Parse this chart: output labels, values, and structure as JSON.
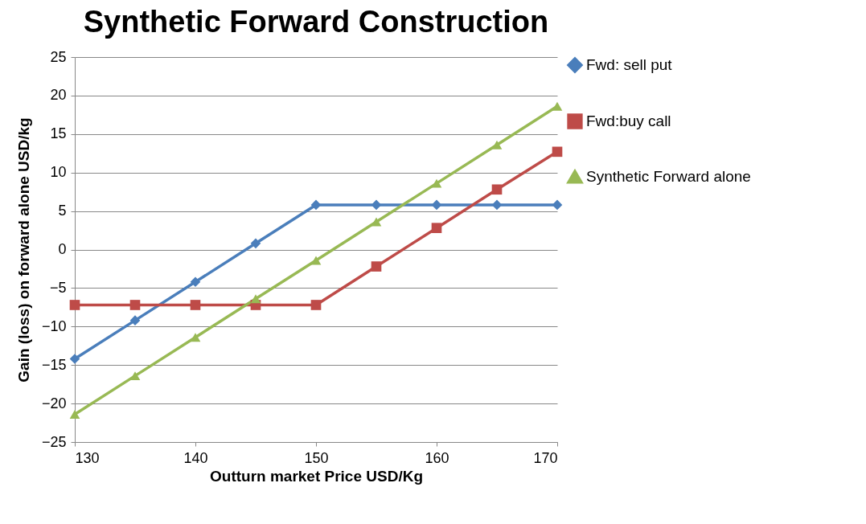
{
  "chart_data": {
    "type": "line",
    "title": "Synthetic Forward Construction",
    "xlabel": "Outturn market Price USD/Kg",
    "ylabel": "Gain (loss) on forward alone USD/kg",
    "x": [
      130,
      135,
      140,
      145,
      150,
      155,
      160,
      165,
      170
    ],
    "series": [
      {
        "name": "Fwd: sell put",
        "color": "#4a7ebb",
        "marker": "diamond",
        "values": [
          -14.2,
          -9.2,
          -4.2,
          0.8,
          5.8,
          5.8,
          5.8,
          5.8,
          5.8
        ]
      },
      {
        "name": "Fwd:buy call",
        "color": "#be4b48",
        "marker": "square",
        "values": [
          -7.2,
          -7.2,
          -7.2,
          -7.2,
          -7.2,
          -2.2,
          2.8,
          7.8,
          12.7
        ]
      },
      {
        "name": "Synthetic Forward alone",
        "color": "#98b954",
        "marker": "triangle",
        "values": [
          -21.4,
          -16.4,
          -11.4,
          -6.4,
          -1.4,
          3.6,
          8.6,
          13.6,
          18.6
        ]
      }
    ],
    "xlim": [
      130,
      170
    ],
    "xticks": [
      130,
      140,
      150,
      160,
      170
    ],
    "ylim": [
      -25,
      25
    ],
    "yticks": [
      -25,
      -20,
      -15,
      -10,
      -5,
      0,
      5,
      10,
      15,
      20,
      25
    ],
    "grid": "y",
    "legend": "right",
    "line_style": "solid"
  }
}
